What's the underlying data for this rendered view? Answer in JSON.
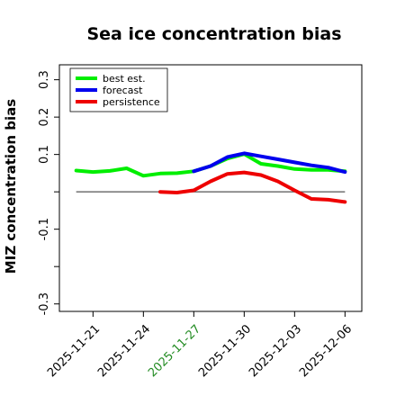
{
  "chart_data": {
    "type": "line",
    "title": "Sea ice concentration bias",
    "ylabel": "MIZ concentration bias",
    "xlabel": "",
    "ylim": [
      -0.32,
      0.34
    ],
    "xlim": [
      "2025-11-19",
      "2025-12-07"
    ],
    "yticks": [
      -0.3,
      -0.1,
      0.1,
      0.2,
      0.3
    ],
    "yticks_minor": [
      -0.2,
      0.0
    ],
    "xticks": [
      {
        "date": "2025-11-21",
        "label": "2025-11-21",
        "color": "#000000"
      },
      {
        "date": "2025-11-24",
        "label": "2025-11-24",
        "color": "#000000"
      },
      {
        "date": "2025-11-27",
        "label": "2025-11-27",
        "color": "#228B22"
      },
      {
        "date": "2025-11-30",
        "label": "2025-11-30",
        "color": "#000000"
      },
      {
        "date": "2025-12-03",
        "label": "2025-12-03",
        "color": "#000000"
      },
      {
        "date": "2025-12-06",
        "label": "2025-12-06",
        "color": "#000000"
      }
    ],
    "reference_line": {
      "y": 0.0,
      "from": "2025-11-20",
      "to": "2025-12-06",
      "color": "#555555"
    },
    "legend_position": "top-left",
    "series": [
      {
        "name": "best est.",
        "color": "#00ee00",
        "x": [
          "2025-11-20",
          "2025-11-21",
          "2025-11-22",
          "2025-11-23",
          "2025-11-24",
          "2025-11-25",
          "2025-11-26",
          "2025-11-27",
          "2025-11-28",
          "2025-11-29",
          "2025-11-30",
          "2025-12-01",
          "2025-12-02",
          "2025-12-03",
          "2025-12-04",
          "2025-12-05",
          "2025-12-06"
        ],
        "values": [
          0.057,
          0.053,
          0.056,
          0.063,
          0.043,
          0.049,
          0.05,
          0.055,
          0.069,
          0.089,
          0.101,
          0.075,
          0.069,
          0.061,
          0.059,
          0.059,
          0.055
        ]
      },
      {
        "name": "forecast",
        "color": "#0000ee",
        "x": [
          "2025-11-27",
          "2025-11-28",
          "2025-11-29",
          "2025-11-30",
          "2025-12-01",
          "2025-12-02",
          "2025-12-03",
          "2025-12-04",
          "2025-12-05",
          "2025-12-06"
        ],
        "values": [
          0.055,
          0.069,
          0.093,
          0.103,
          0.095,
          0.087,
          0.079,
          0.071,
          0.065,
          0.053
        ]
      },
      {
        "name": "persistence",
        "color": "#ee0000",
        "x": [
          "2025-11-25",
          "2025-11-26",
          "2025-11-27",
          "2025-11-28",
          "2025-11-29",
          "2025-11-30",
          "2025-12-01",
          "2025-12-02",
          "2025-12-03",
          "2025-12-04",
          "2025-12-05",
          "2025-12-06"
        ],
        "values": [
          0.0,
          -0.002,
          0.004,
          0.028,
          0.048,
          0.052,
          0.045,
          0.028,
          0.004,
          -0.019,
          -0.021,
          -0.027
        ]
      }
    ]
  }
}
